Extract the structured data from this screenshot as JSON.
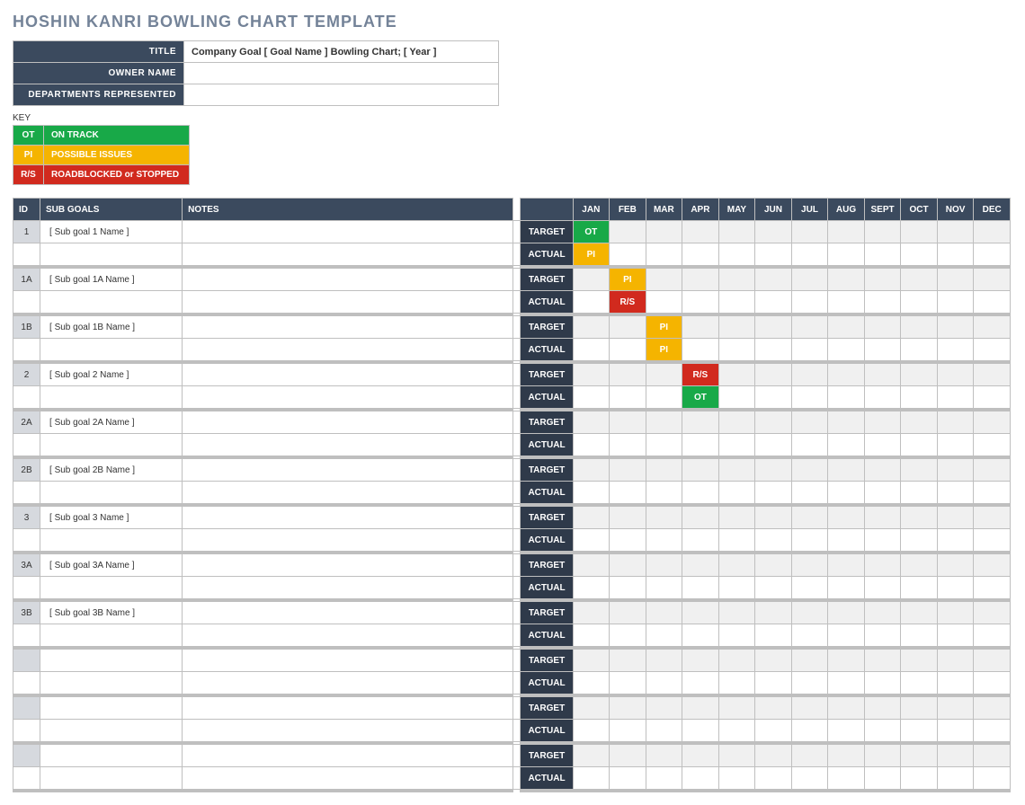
{
  "page_title": "HOSHIN KANRI BOWLING CHART TEMPLATE",
  "colors": {
    "title_text": "#748398",
    "header_bg": "#3b4a5e",
    "label_bg": "#2f3a4a",
    "id_bg": "#d6d9de",
    "target_row_bg": "#f0f0f0",
    "border": "#bfbfbf",
    "white": "#ffffff",
    "sep": "#bfbfbf"
  },
  "meta": {
    "rows": [
      {
        "label": "TITLE",
        "value": "Company Goal [ Goal Name ] Bowling Chart; [ Year ]"
      },
      {
        "label": "OWNER NAME",
        "value": ""
      },
      {
        "label": "DEPARTMENTS REPRESENTED",
        "value": ""
      }
    ]
  },
  "key_label": "KEY",
  "legend": [
    {
      "code": "OT",
      "desc": "ON TRACK",
      "color": "#18a948"
    },
    {
      "code": "PI",
      "desc": "POSSIBLE ISSUES",
      "color": "#f5b400"
    },
    {
      "code": "R/S",
      "desc": "ROADBLOCKED or STOPPED",
      "color": "#d12a1e"
    }
  ],
  "status_colors": {
    "OT": "#18a948",
    "PI": "#f5b400",
    "R/S": "#d12a1e"
  },
  "months": [
    "JAN",
    "FEB",
    "MAR",
    "APR",
    "MAY",
    "JUN",
    "JUL",
    "AUG",
    "SEPT",
    "OCT",
    "NOV",
    "DEC"
  ],
  "headers": {
    "id": "ID",
    "sub": "SUB GOALS",
    "notes": "NOTES",
    "target": "TARGET",
    "actual": "ACTUAL"
  },
  "rows": [
    {
      "id": "1",
      "sub": "[ Sub goal 1 Name ]",
      "notes": "",
      "target": [
        "OT",
        "",
        "",
        "",
        "",
        "",
        "",
        "",
        "",
        "",
        "",
        ""
      ],
      "actual": [
        "PI",
        "",
        "",
        "",
        "",
        "",
        "",
        "",
        "",
        "",
        "",
        ""
      ]
    },
    {
      "id": "1A",
      "sub": "[ Sub goal 1A Name ]",
      "notes": "",
      "target": [
        "",
        "PI",
        "",
        "",
        "",
        "",
        "",
        "",
        "",
        "",
        "",
        ""
      ],
      "actual": [
        "",
        "R/S",
        "",
        "",
        "",
        "",
        "",
        "",
        "",
        "",
        "",
        ""
      ]
    },
    {
      "id": "1B",
      "sub": "[ Sub goal 1B Name ]",
      "notes": "",
      "target": [
        "",
        "",
        "PI",
        "",
        "",
        "",
        "",
        "",
        "",
        "",
        "",
        ""
      ],
      "actual": [
        "",
        "",
        "PI",
        "",
        "",
        "",
        "",
        "",
        "",
        "",
        "",
        ""
      ]
    },
    {
      "id": "2",
      "sub": "[ Sub goal 2 Name ]",
      "notes": "",
      "target": [
        "",
        "",
        "",
        "R/S",
        "",
        "",
        "",
        "",
        "",
        "",
        "",
        ""
      ],
      "actual": [
        "",
        "",
        "",
        "OT",
        "",
        "",
        "",
        "",
        "",
        "",
        "",
        ""
      ]
    },
    {
      "id": "2A",
      "sub": "[ Sub goal 2A Name ]",
      "notes": "",
      "target": [
        "",
        "",
        "",
        "",
        "",
        "",
        "",
        "",
        "",
        "",
        "",
        ""
      ],
      "actual": [
        "",
        "",
        "",
        "",
        "",
        "",
        "",
        "",
        "",
        "",
        "",
        ""
      ]
    },
    {
      "id": "2B",
      "sub": "[ Sub goal 2B Name ]",
      "notes": "",
      "target": [
        "",
        "",
        "",
        "",
        "",
        "",
        "",
        "",
        "",
        "",
        "",
        ""
      ],
      "actual": [
        "",
        "",
        "",
        "",
        "",
        "",
        "",
        "",
        "",
        "",
        "",
        ""
      ]
    },
    {
      "id": "3",
      "sub": "[ Sub goal 3 Name ]",
      "notes": "",
      "target": [
        "",
        "",
        "",
        "",
        "",
        "",
        "",
        "",
        "",
        "",
        "",
        ""
      ],
      "actual": [
        "",
        "",
        "",
        "",
        "",
        "",
        "",
        "",
        "",
        "",
        "",
        ""
      ]
    },
    {
      "id": "3A",
      "sub": "[ Sub goal 3A Name ]",
      "notes": "",
      "target": [
        "",
        "",
        "",
        "",
        "",
        "",
        "",
        "",
        "",
        "",
        "",
        ""
      ],
      "actual": [
        "",
        "",
        "",
        "",
        "",
        "",
        "",
        "",
        "",
        "",
        "",
        ""
      ]
    },
    {
      "id": "3B",
      "sub": "[ Sub goal 3B Name ]",
      "notes": "",
      "target": [
        "",
        "",
        "",
        "",
        "",
        "",
        "",
        "",
        "",
        "",
        "",
        ""
      ],
      "actual": [
        "",
        "",
        "",
        "",
        "",
        "",
        "",
        "",
        "",
        "",
        "",
        ""
      ]
    },
    {
      "id": "",
      "sub": "",
      "notes": "",
      "target": [
        "",
        "",
        "",
        "",
        "",
        "",
        "",
        "",
        "",
        "",
        "",
        ""
      ],
      "actual": [
        "",
        "",
        "",
        "",
        "",
        "",
        "",
        "",
        "",
        "",
        "",
        ""
      ]
    },
    {
      "id": "",
      "sub": "",
      "notes": "",
      "target": [
        "",
        "",
        "",
        "",
        "",
        "",
        "",
        "",
        "",
        "",
        "",
        ""
      ],
      "actual": [
        "",
        "",
        "",
        "",
        "",
        "",
        "",
        "",
        "",
        "",
        "",
        ""
      ]
    },
    {
      "id": "",
      "sub": "",
      "notes": "",
      "target": [
        "",
        "",
        "",
        "",
        "",
        "",
        "",
        "",
        "",
        "",
        "",
        ""
      ],
      "actual": [
        "",
        "",
        "",
        "",
        "",
        "",
        "",
        "",
        "",
        "",
        "",
        ""
      ]
    }
  ]
}
